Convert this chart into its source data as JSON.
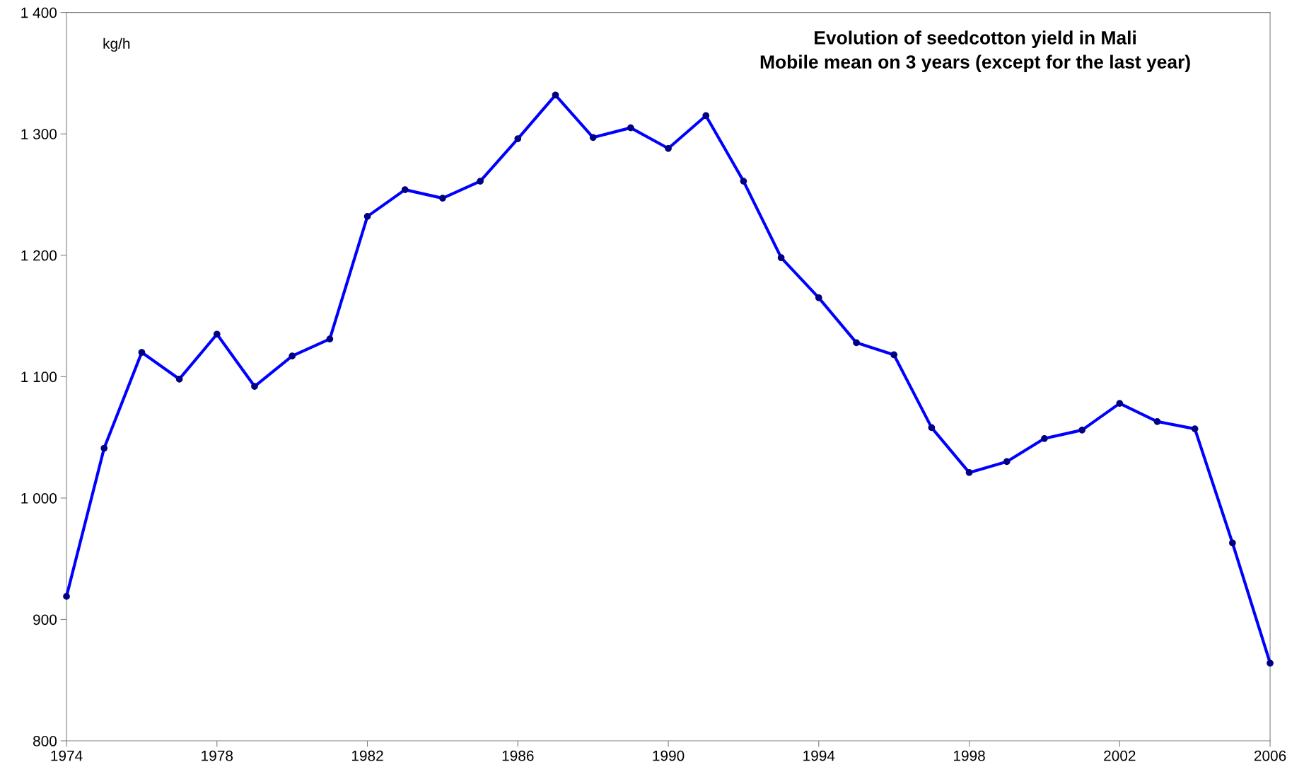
{
  "chart_data": {
    "type": "line",
    "title": "Evolution of seedcotton yield in Mali\nMobile mean on 3 years (except for the last year)",
    "ylabel": "kg/h",
    "x": [
      1974,
      1975,
      1976,
      1977,
      1978,
      1979,
      1980,
      1981,
      1982,
      1983,
      1984,
      1985,
      1986,
      1987,
      1988,
      1989,
      1990,
      1991,
      1992,
      1993,
      1994,
      1995,
      1996,
      1997,
      1998,
      1999,
      2000,
      2001,
      2002,
      2003,
      2004,
      2005,
      2006
    ],
    "series": [
      {
        "color": "#0000ff",
        "values": [
          919,
          1041,
          1120,
          1098,
          1135,
          1092,
          1117,
          1131,
          1232,
          1254,
          1247,
          1261,
          1296,
          1332,
          1297,
          1305,
          1288,
          1315,
          1261,
          1198,
          1165,
          1128,
          1118,
          1058,
          1021,
          1030,
          1049,
          1056,
          1078,
          1063,
          1057,
          963,
          864
        ]
      }
    ],
    "xlim": [
      1974,
      2006
    ],
    "xticks": [
      1974,
      1978,
      1982,
      1986,
      1990,
      1994,
      1998,
      2002,
      2006
    ],
    "ylim": [
      800,
      1400
    ],
    "yticks": [
      800,
      900,
      {
        "value": 1000,
        "label": "1 000"
      },
      {
        "value": 1100,
        "label": "1 100"
      },
      {
        "value": 1200,
        "label": "1 200"
      },
      {
        "value": 1300,
        "label": "1 300"
      },
      {
        "value": 1400,
        "label": "1 400"
      }
    ],
    "grid": false,
    "legend": false,
    "marker": "circle",
    "line_style": "solid"
  }
}
